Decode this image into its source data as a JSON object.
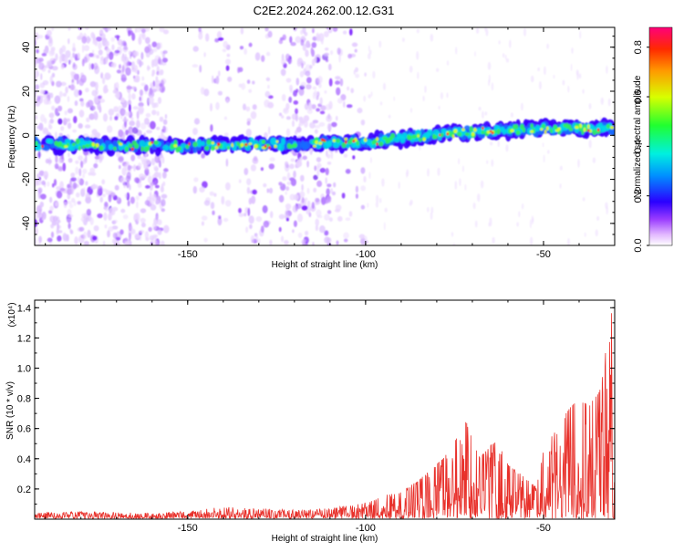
{
  "title": "C2E2.2024.262.00.12.G31",
  "chart_data": [
    {
      "type": "heatmap",
      "xlabel": "Height of straight line (km)",
      "ylabel": "Frequency (Hz)",
      "xlim": [
        -193,
        -30
      ],
      "ylim": [
        -50,
        49
      ],
      "x_ticks": [
        -150,
        -100,
        -50
      ],
      "y_ticks": [
        -40,
        -20,
        0,
        20,
        40
      ],
      "colorbar": {
        "label": "Normalized spectral amplitude",
        "range": [
          0.0,
          0.88
        ],
        "ticks": [
          0.0,
          0.2,
          0.4,
          0.6,
          0.8
        ]
      },
      "ridge": {
        "description_points": [
          [
            -193,
            -4
          ],
          [
            -155,
            -5
          ],
          [
            -100,
            -3
          ],
          [
            -75,
            1
          ],
          [
            -50,
            3
          ],
          [
            -30,
            3
          ]
        ],
        "width_hz": 8
      }
    },
    {
      "type": "line",
      "xlabel": "Height of straight line (km)",
      "ylabel": "SNR (10 * v/v)",
      "y_multiplier": "(x10⁴)",
      "xlim": [
        -193,
        -30
      ],
      "ylim": [
        0,
        1.45
      ],
      "x_ticks": [
        -150,
        -100,
        -50
      ],
      "y_ticks": [
        0.2,
        0.4,
        0.6,
        0.8,
        1.0,
        1.2,
        1.4
      ],
      "color": "#e8302a",
      "envelope": [
        [
          -193,
          0.03
        ],
        [
          -180,
          0.04
        ],
        [
          -160,
          0.03
        ],
        [
          -150,
          0.04
        ],
        [
          -140,
          0.07
        ],
        [
          -130,
          0.06
        ],
        [
          -120,
          0.05
        ],
        [
          -110,
          0.06
        ],
        [
          -100,
          0.1
        ],
        [
          -95,
          0.15
        ],
        [
          -90,
          0.17
        ],
        [
          -85,
          0.25
        ],
        [
          -80,
          0.35
        ],
        [
          -76,
          0.45
        ],
        [
          -72,
          0.65
        ],
        [
          -68,
          0.4
        ],
        [
          -63,
          0.52
        ],
        [
          -60,
          0.35
        ],
        [
          -56,
          0.28
        ],
        [
          -52,
          0.2
        ],
        [
          -50,
          0.45
        ],
        [
          -46,
          0.6
        ],
        [
          -43,
          0.72
        ],
        [
          -40,
          0.78
        ],
        [
          -37,
          0.75
        ],
        [
          -34,
          0.85
        ],
        [
          -32,
          1.2
        ],
        [
          -31,
          1.45
        ],
        [
          -30,
          0.9
        ]
      ]
    }
  ]
}
